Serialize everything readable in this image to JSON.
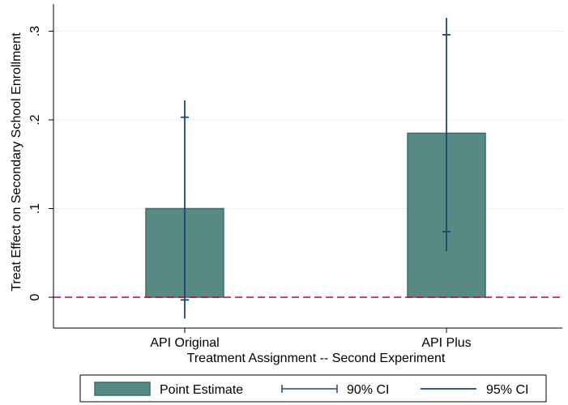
{
  "chart_data": {
    "type": "bar",
    "categories": [
      "API Original",
      "API Plus"
    ],
    "point_estimate": [
      0.1,
      0.185
    ],
    "ci90": [
      [
        -0.003,
        0.203
      ],
      [
        0.074,
        0.296
      ]
    ],
    "ci95": [
      [
        -0.024,
        0.222
      ],
      [
        0.052,
        0.315
      ]
    ],
    "xlabel": "Treatment Assignment -- Second Experiment",
    "ylabel": "Treat Effect on Secondary School Enrollment",
    "ylim": [
      -0.035,
      0.33
    ],
    "yticks": [
      0,
      0.1,
      0.2,
      0.3
    ],
    "ytick_labels": [
      "0",
      ".1",
      ".2",
      ".3"
    ],
    "reference_line": 0,
    "grid": true,
    "legend_position": "bottom",
    "legend": {
      "point_estimate": "Point Estimate",
      "ci90": "90% CI",
      "ci95": "95% CI"
    },
    "colors": {
      "bar_fill": "#568a82",
      "bar_stroke": "#3d6e67",
      "ci": "#1a476f",
      "reference_line": "#c10534",
      "grid": "#eaf2f3"
    }
  }
}
